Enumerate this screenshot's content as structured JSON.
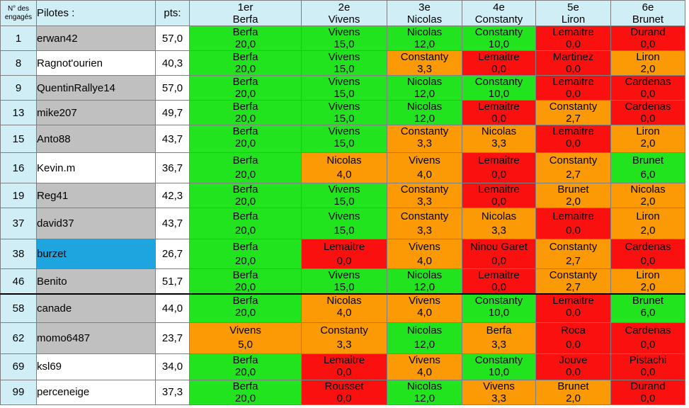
{
  "header": {
    "num_label": "N° des engagés",
    "pilot_label": "Pilotes :",
    "pts_label": "pts:",
    "positions": [
      {
        "rank": "1er",
        "name": "Berfa"
      },
      {
        "rank": "2e",
        "name": "Vivens"
      },
      {
        "rank": "3e",
        "name": "Nicolas"
      },
      {
        "rank": "4e",
        "name": "Constanty"
      },
      {
        "rank": "5e",
        "name": "Liron"
      },
      {
        "rank": "6e",
        "name": "Brunet"
      }
    ]
  },
  "status_colors": {
    "correct": "#22e41e",
    "close": "#fc9a06",
    "wrong": "#fb1010"
  },
  "row_colors": {
    "grey": "#c0c0c0",
    "white": "#ffffff",
    "highlight": "#1ea5e0"
  },
  "rows": [
    {
      "num": "1",
      "pilot": "erwan42",
      "pts": "57,0",
      "bg": "grey",
      "picks": [
        {
          "name": "Berfa",
          "score": "20,0",
          "status": "correct"
        },
        {
          "name": "Vivens",
          "score": "15,0",
          "status": "correct"
        },
        {
          "name": "Nicolas",
          "score": "12,0",
          "status": "correct"
        },
        {
          "name": "Constanty",
          "score": "10,0",
          "status": "correct"
        },
        {
          "name": "Lemaitre",
          "score": "0,0",
          "status": "wrong"
        },
        {
          "name": "Durand",
          "score": "0,0",
          "status": "wrong"
        }
      ]
    },
    {
      "num": "8",
      "pilot": "Ragnot'ourien",
      "pts": "40,3",
      "bg": "white",
      "picks": [
        {
          "name": "Berfa",
          "score": "20,0",
          "status": "correct"
        },
        {
          "name": "Vivens",
          "score": "15,0",
          "status": "correct"
        },
        {
          "name": "Constanty",
          "score": "3,3",
          "status": "close"
        },
        {
          "name": "Lemaitre",
          "score": "0,0",
          "status": "wrong"
        },
        {
          "name": "Martinez",
          "score": "0,0",
          "status": "wrong"
        },
        {
          "name": "Liron",
          "score": "2,0",
          "status": "close"
        }
      ]
    },
    {
      "num": "9",
      "pilot": "QuentinRallye14",
      "pts": "57,0",
      "bg": "grey",
      "picks": [
        {
          "name": "Berfa",
          "score": "20,0",
          "status": "correct"
        },
        {
          "name": "Vivens",
          "score": "15,0",
          "status": "correct"
        },
        {
          "name": "Nicolas",
          "score": "12,0",
          "status": "correct"
        },
        {
          "name": "Constanty",
          "score": "10,0",
          "status": "correct"
        },
        {
          "name": "Lemaitre",
          "score": "0,0",
          "status": "wrong"
        },
        {
          "name": "Cardenas",
          "score": "0,0",
          "status": "wrong"
        }
      ]
    },
    {
      "num": "13",
      "pilot": "mike207",
      "pts": "49,7",
      "bg": "grey",
      "picks": [
        {
          "name": "Berfa",
          "score": "20,0",
          "status": "correct"
        },
        {
          "name": "Vivens",
          "score": "15,0",
          "status": "correct"
        },
        {
          "name": "Nicolas",
          "score": "12,0",
          "status": "correct"
        },
        {
          "name": "Lemaitre",
          "score": "0,0",
          "status": "wrong"
        },
        {
          "name": "Constanty",
          "score": "2,7",
          "status": "close"
        },
        {
          "name": "Cardenas",
          "score": "0,0",
          "status": "wrong"
        }
      ]
    },
    {
      "num": "15",
      "pilot": "Anto88",
      "pts": "43,7",
      "bg": "grey",
      "picks": [
        {
          "name": "Berfa",
          "score": "20,0",
          "status": "correct"
        },
        {
          "name": "Vivens",
          "score": "15,0",
          "status": "correct"
        },
        {
          "name": "Constanty",
          "score": "3,3",
          "status": "close"
        },
        {
          "name": "Nicolas",
          "score": "3,3",
          "status": "close"
        },
        {
          "name": "Lemaitre",
          "score": "0,0",
          "status": "wrong"
        },
        {
          "name": "Liron",
          "score": "2,0",
          "status": "close"
        }
      ]
    },
    {
      "num": "16",
      "pilot": "Kevin.m",
      "pts": "36,7",
      "bg": "white",
      "picks": [
        {
          "name": "Berfa",
          "score": "20,0",
          "status": "correct"
        },
        {
          "name": "Nicolas",
          "score": "4,0",
          "status": "close"
        },
        {
          "name": "Vivens",
          "score": "4,0",
          "status": "close"
        },
        {
          "name": "Lemaitre",
          "score": "0,0",
          "status": "wrong"
        },
        {
          "name": "Constanty",
          "score": "2,7",
          "status": "close"
        },
        {
          "name": "Brunet",
          "score": "6,0",
          "status": "correct"
        }
      ]
    },
    {
      "num": "19",
      "pilot": "Reg41",
      "pts": "42,3",
      "bg": "grey",
      "picks": [
        {
          "name": "Berfa",
          "score": "20,0",
          "status": "correct"
        },
        {
          "name": "Vivens",
          "score": "15,0",
          "status": "correct"
        },
        {
          "name": "Constanty",
          "score": "3,3",
          "status": "close"
        },
        {
          "name": "Lemaitre",
          "score": "0,0",
          "status": "wrong"
        },
        {
          "name": "Brunet",
          "score": "2,0",
          "status": "close"
        },
        {
          "name": "Nicolas",
          "score": "2,0",
          "status": "close"
        }
      ]
    },
    {
      "num": "37",
      "pilot": "david37",
      "pts": "43,7",
      "bg": "grey",
      "picks": [
        {
          "name": "Berfa",
          "score": "20,0",
          "status": "correct"
        },
        {
          "name": "Vivens",
          "score": "15,0",
          "status": "correct"
        },
        {
          "name": "Constanty",
          "score": "3,3",
          "status": "close"
        },
        {
          "name": "Nicolas",
          "score": "3,3",
          "status": "close"
        },
        {
          "name": "Lemaitre",
          "score": "0,0",
          "status": "wrong"
        },
        {
          "name": "Liron",
          "score": "2,0",
          "status": "close"
        }
      ]
    },
    {
      "num": "38",
      "pilot": "burzet",
      "pts": "26,7",
      "bg": "highlight",
      "picks": [
        {
          "name": "Berfa",
          "score": "20,0",
          "status": "correct"
        },
        {
          "name": "Lemaitre",
          "score": "0,0",
          "status": "wrong"
        },
        {
          "name": "Vivens",
          "score": "4,0",
          "status": "close"
        },
        {
          "name": "Ninou Garet",
          "score": "0,0",
          "status": "wrong"
        },
        {
          "name": "Constanty",
          "score": "2,7",
          "status": "close"
        },
        {
          "name": "Cardenas",
          "score": "0,0",
          "status": "wrong"
        }
      ]
    },
    {
      "num": "46",
      "pilot": "Benito",
      "pts": "51,7",
      "bg": "grey",
      "picks": [
        {
          "name": "Berfa",
          "score": "20,0",
          "status": "correct"
        },
        {
          "name": "Vivens",
          "score": "15,0",
          "status": "correct"
        },
        {
          "name": "Nicolas",
          "score": "12,0",
          "status": "correct"
        },
        {
          "name": "Lemaitre",
          "score": "0,0",
          "status": "wrong"
        },
        {
          "name": "Constanty",
          "score": "2,7",
          "status": "close"
        },
        {
          "name": "Liron",
          "score": "2,0",
          "status": "close"
        }
      ]
    },
    {
      "num": "58",
      "pilot": "canade",
      "pts": "44,0",
      "bg": "grey",
      "picks": [
        {
          "name": "Berfa",
          "score": "20,0",
          "status": "correct"
        },
        {
          "name": "Nicolas",
          "score": "4,0",
          "status": "close"
        },
        {
          "name": "Vivens",
          "score": "4,0",
          "status": "close"
        },
        {
          "name": "Constanty",
          "score": "10,0",
          "status": "correct"
        },
        {
          "name": "Lemaitre",
          "score": "0,0",
          "status": "wrong"
        },
        {
          "name": "Brunet",
          "score": "6,0",
          "status": "correct"
        }
      ]
    },
    {
      "num": "62",
      "pilot": "momo6487",
      "pts": "23,7",
      "bg": "grey",
      "picks": [
        {
          "name": "Vivens",
          "score": "5,0",
          "status": "close"
        },
        {
          "name": "Constanty",
          "score": "3,3",
          "status": "close"
        },
        {
          "name": "Nicolas",
          "score": "12,0",
          "status": "correct"
        },
        {
          "name": "Berfa",
          "score": "3,3",
          "status": "close"
        },
        {
          "name": "Roca",
          "score": "0,0",
          "status": "wrong"
        },
        {
          "name": "Cardenas",
          "score": "0,0",
          "status": "wrong"
        }
      ]
    },
    {
      "num": "69",
      "pilot": "ksl69",
      "pts": "34,0",
      "bg": "white",
      "picks": [
        {
          "name": "Berfa",
          "score": "20,0",
          "status": "correct"
        },
        {
          "name": "Lemaitre",
          "score": "0,0",
          "status": "wrong"
        },
        {
          "name": "Vivens",
          "score": "4,0",
          "status": "close"
        },
        {
          "name": "Constanty",
          "score": "10,0",
          "status": "correct"
        },
        {
          "name": "Jouve",
          "score": "0,0",
          "status": "wrong"
        },
        {
          "name": "Pistachi",
          "score": "0,0",
          "status": "wrong"
        }
      ]
    },
    {
      "num": "99",
      "pilot": "perceneige",
      "pts": "37,3",
      "bg": "white",
      "picks": [
        {
          "name": "Berfa",
          "score": "20,0",
          "status": "correct"
        },
        {
          "name": "Rousset",
          "score": "0,0",
          "status": "wrong"
        },
        {
          "name": "Nicolas",
          "score": "12,0",
          "status": "correct"
        },
        {
          "name": "Vivens",
          "score": "3,3",
          "status": "close"
        },
        {
          "name": "Brunet",
          "score": "2,0",
          "status": "close"
        },
        {
          "name": "Durand",
          "score": "0,0",
          "status": "wrong"
        }
      ]
    }
  ]
}
